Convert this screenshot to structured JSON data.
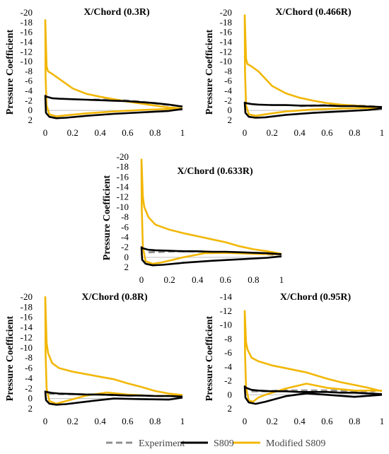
{
  "chart_data": [
    {
      "type": "line",
      "title": "X/Chord (0.3R)",
      "xlabel": "",
      "ylabel": "Pressure Coefficient",
      "xlim": [
        0,
        1
      ],
      "ylim": [
        -20,
        2
      ],
      "y_axis_reversed": true,
      "x_ticks": [
        "0",
        "0.2",
        "0.4",
        "0.6",
        "0.8",
        "1"
      ],
      "y_ticks": [
        "-20",
        "-18",
        "-16",
        "-14",
        "-12",
        "-10",
        "-8",
        "-6",
        "-4",
        "-2",
        "0",
        "2"
      ],
      "series": [
        {
          "name": "Experiment",
          "color": "#909090",
          "dash": true,
          "x": [
            0.35,
            0.45,
            0.55,
            0.65,
            0.75,
            0.85,
            0.95
          ],
          "y": [
            -2.2,
            -2.2,
            -2.1,
            -1.9,
            -1.6,
            -1.3,
            -1.0
          ]
        },
        {
          "name": "S809",
          "color": "#000000",
          "x": [
            1.0,
            0.9,
            0.8,
            0.7,
            0.6,
            0.5,
            0.4,
            0.3,
            0.2,
            0.1,
            0.05,
            0.01,
            0.0,
            0.005,
            0.03,
            0.08,
            0.15,
            0.3,
            0.5,
            0.7,
            0.9,
            1.0
          ],
          "y": [
            -0.8,
            -1.2,
            -1.5,
            -1.7,
            -1.9,
            -2.0,
            -2.1,
            -2.2,
            -2.3,
            -2.4,
            -2.5,
            -2.8,
            -3.0,
            0.5,
            1.3,
            1.6,
            1.5,
            1.1,
            0.7,
            0.4,
            0.1,
            -0.3
          ]
        },
        {
          "name": "Modified S809",
          "color": "#f2b705",
          "x": [
            1.0,
            0.9,
            0.8,
            0.7,
            0.6,
            0.5,
            0.4,
            0.3,
            0.2,
            0.1,
            0.05,
            0.02,
            0.01,
            0.0,
            0.002,
            0.01,
            0.03,
            0.08,
            0.15,
            0.3,
            0.5,
            0.7,
            0.9,
            1.0
          ],
          "y": [
            -0.4,
            -0.6,
            -1.0,
            -1.4,
            -1.8,
            -2.3,
            -2.8,
            -3.4,
            -4.5,
            -6.5,
            -7.5,
            -8.0,
            -9.0,
            -18.5,
            -7.0,
            -1.0,
            0.8,
            1.2,
            1.0,
            0.6,
            0.2,
            -0.1,
            -0.3,
            -0.4
          ]
        }
      ]
    },
    {
      "type": "line",
      "title": "X/Chord (0.466R)",
      "xlabel": "",
      "ylabel": "Pressure Coefficient",
      "xlim": [
        0,
        1
      ],
      "ylim": [
        -20,
        2
      ],
      "y_axis_reversed": true,
      "x_ticks": [
        "0",
        "0.2",
        "0.4",
        "0.6",
        "0.8",
        "1"
      ],
      "y_ticks": [
        "-20",
        "-18",
        "-16",
        "-14",
        "-12",
        "-10",
        "-8",
        "-6",
        "-4",
        "-2",
        "0",
        "2"
      ],
      "series": [
        {
          "name": "Experiment",
          "color": "#909090",
          "dash": true,
          "x": [
            0.4,
            0.5,
            0.6,
            0.7,
            0.8,
            0.9,
            0.95
          ],
          "y": [
            -0.9,
            -1.0,
            -1.1,
            -1.1,
            -1.0,
            -0.9,
            -0.8
          ]
        },
        {
          "name": "S809",
          "color": "#000000",
          "x": [
            1.0,
            0.9,
            0.8,
            0.7,
            0.6,
            0.5,
            0.4,
            0.3,
            0.2,
            0.1,
            0.05,
            0.01,
            0.0,
            0.005,
            0.03,
            0.08,
            0.15,
            0.3,
            0.5,
            0.7,
            0.9,
            1.0
          ],
          "y": [
            -0.7,
            -0.8,
            -0.9,
            -0.9,
            -1.0,
            -1.0,
            -1.0,
            -1.1,
            -1.1,
            -1.2,
            -1.3,
            -1.5,
            -1.6,
            0.5,
            1.3,
            1.5,
            1.4,
            0.9,
            0.5,
            0.2,
            -0.1,
            -0.4
          ]
        },
        {
          "name": "Modified S809",
          "color": "#f2b705",
          "x": [
            1.0,
            0.9,
            0.8,
            0.7,
            0.6,
            0.5,
            0.4,
            0.3,
            0.2,
            0.1,
            0.05,
            0.02,
            0.01,
            0.0,
            0.002,
            0.01,
            0.03,
            0.08,
            0.15,
            0.3,
            0.5,
            0.7,
            0.9,
            1.0
          ],
          "y": [
            -0.5,
            -0.8,
            -1.0,
            -1.2,
            -1.5,
            -2.0,
            -2.6,
            -3.5,
            -5.0,
            -8.0,
            -9.0,
            -9.5,
            -10.5,
            -19.5,
            -8.0,
            -1.0,
            0.8,
            1.1,
            0.8,
            0.2,
            -0.2,
            -0.4,
            -0.5,
            -0.5
          ]
        }
      ]
    },
    {
      "type": "line",
      "title": "X/Chord (0.633R)",
      "xlabel": "",
      "ylabel": "Pressure Coefficient",
      "xlim": [
        0,
        1
      ],
      "ylim": [
        -20,
        2
      ],
      "y_axis_reversed": true,
      "x_ticks": [
        "0",
        "0.2",
        "0.4",
        "0.6",
        "0.8",
        "1"
      ],
      "y_ticks": [
        "-20",
        "-18",
        "-16",
        "-14",
        "-12",
        "-10",
        "-8",
        "-6",
        "-4",
        "-2",
        "0",
        "2"
      ],
      "series": [
        {
          "name": "Experiment",
          "color": "#909090",
          "dash": true,
          "x": [
            0.05,
            0.15,
            0.25,
            0.35,
            0.45,
            0.55,
            0.65,
            0.75,
            0.85,
            0.95
          ],
          "y": [
            -1.0,
            -1.1,
            -1.2,
            -1.2,
            -1.1,
            -1.0,
            -0.9,
            -0.8,
            -0.7,
            -0.5
          ]
        },
        {
          "name": "S809",
          "color": "#000000",
          "x": [
            1.0,
            0.9,
            0.8,
            0.7,
            0.6,
            0.5,
            0.4,
            0.3,
            0.2,
            0.1,
            0.05,
            0.01,
            0.0,
            0.005,
            0.03,
            0.08,
            0.15,
            0.3,
            0.5,
            0.7,
            0.9,
            1.0
          ],
          "y": [
            -0.6,
            -0.8,
            -0.9,
            -1.0,
            -1.1,
            -1.1,
            -1.2,
            -1.2,
            -1.3,
            -1.4,
            -1.5,
            -1.8,
            -2.0,
            0.5,
            1.3,
            1.6,
            1.5,
            1.1,
            0.7,
            0.4,
            0.1,
            -0.2
          ]
        },
        {
          "name": "Modified S809",
          "color": "#f2b705",
          "x": [
            1.0,
            0.9,
            0.8,
            0.7,
            0.6,
            0.5,
            0.4,
            0.3,
            0.2,
            0.1,
            0.05,
            0.02,
            0.01,
            0.0,
            0.002,
            0.01,
            0.03,
            0.08,
            0.15,
            0.3,
            0.45,
            0.6,
            0.8,
            1.0
          ],
          "y": [
            -0.7,
            -1.2,
            -1.6,
            -2.2,
            -3.0,
            -3.6,
            -4.2,
            -4.8,
            -5.5,
            -6.5,
            -8.0,
            -10.0,
            -12.0,
            -19.5,
            -10.0,
            -2.0,
            0.8,
            1.3,
            1.0,
            0.0,
            -0.8,
            -0.9,
            -0.7,
            -0.6
          ]
        }
      ]
    },
    {
      "type": "line",
      "title": "X/Chord (0.8R)",
      "xlabel": "",
      "ylabel": "Pressure Coefficient",
      "xlim": [
        0,
        1
      ],
      "ylim": [
        -20,
        2
      ],
      "y_axis_reversed": true,
      "x_ticks": [
        "0",
        "0.2",
        "0.4",
        "0.6",
        "0.8",
        "1"
      ],
      "y_ticks": [
        "-20",
        "-18",
        "-16",
        "-14",
        "-12",
        "-10",
        "-8",
        "-6",
        "-4",
        "-2",
        "0",
        "2"
      ],
      "series": [
        {
          "name": "Experiment",
          "color": "#909090",
          "dash": true,
          "x": [
            0.02,
            0.1,
            0.2,
            0.3,
            0.4,
            0.5,
            0.6,
            0.7,
            0.8,
            0.9
          ],
          "y": [
            -1.0,
            -0.9,
            -0.9,
            -0.8,
            -0.8,
            -0.7,
            -0.6,
            -0.6,
            -0.5,
            -0.5
          ]
        },
        {
          "name": "S809",
          "color": "#000000",
          "x": [
            1.0,
            0.9,
            0.8,
            0.7,
            0.6,
            0.5,
            0.4,
            0.3,
            0.2,
            0.1,
            0.05,
            0.01,
            0.0,
            0.005,
            0.03,
            0.08,
            0.15,
            0.3,
            0.5,
            0.7,
            0.9,
            1.0
          ],
          "y": [
            -0.4,
            -0.5,
            -0.5,
            -0.6,
            -0.6,
            -0.7,
            -0.8,
            -0.8,
            -0.9,
            -1.0,
            -1.1,
            -1.3,
            -1.4,
            0.3,
            1.0,
            1.2,
            1.1,
            0.6,
            0.0,
            0.1,
            0.2,
            -0.2
          ]
        },
        {
          "name": "Modified S809",
          "color": "#f2b705",
          "x": [
            1.0,
            0.9,
            0.8,
            0.7,
            0.6,
            0.5,
            0.4,
            0.3,
            0.2,
            0.1,
            0.05,
            0.02,
            0.01,
            0.0,
            0.002,
            0.01,
            0.03,
            0.08,
            0.15,
            0.3,
            0.45,
            0.6,
            0.8,
            1.0
          ],
          "y": [
            -0.7,
            -1.0,
            -1.5,
            -2.3,
            -3.0,
            -3.8,
            -4.3,
            -4.8,
            -5.3,
            -6.0,
            -7.0,
            -9.0,
            -11.0,
            -20.0,
            -9.0,
            -2.0,
            0.5,
            1.0,
            0.5,
            -0.6,
            -1.2,
            -0.8,
            -0.5,
            -0.6
          ]
        }
      ]
    },
    {
      "type": "line",
      "title": "X/Chord (0.95R)",
      "xlabel": "",
      "ylabel": "Pressure Coefficient",
      "xlim": [
        0,
        1
      ],
      "ylim": [
        -14,
        2
      ],
      "y_axis_reversed": true,
      "x_ticks": [
        "0",
        "0.2",
        "0.4",
        "0.6",
        "0.8",
        "1"
      ],
      "y_ticks": [
        "-14",
        "-12",
        "-10",
        "-8",
        "-6",
        "-4",
        "-2",
        "0",
        "2"
      ],
      "series": [
        {
          "name": "Experiment",
          "color": "#909090",
          "dash": true,
          "x": [
            0.05,
            0.15,
            0.25,
            0.35,
            0.45,
            0.55,
            0.65,
            0.75,
            0.85,
            0.95
          ],
          "y": [
            -0.5,
            -0.5,
            -0.6,
            -0.6,
            -0.6,
            -0.6,
            -0.6,
            -0.5,
            -0.5,
            -0.5
          ]
        },
        {
          "name": "S809",
          "color": "#000000",
          "x": [
            1.0,
            0.9,
            0.8,
            0.7,
            0.6,
            0.5,
            0.4,
            0.3,
            0.2,
            0.1,
            0.05,
            0.01,
            0.0,
            0.005,
            0.03,
            0.08,
            0.15,
            0.3,
            0.45,
            0.6,
            0.8,
            1.0
          ],
          "y": [
            -0.1,
            -0.2,
            -0.3,
            -0.3,
            -0.4,
            -0.4,
            -0.4,
            -0.5,
            -0.5,
            -0.6,
            -0.7,
            -1.0,
            -1.2,
            0.4,
            1.1,
            1.3,
            1.0,
            0.2,
            -0.2,
            0.0,
            0.3,
            0.0
          ]
        },
        {
          "name": "Modified S809",
          "color": "#f2b705",
          "x": [
            1.0,
            0.9,
            0.8,
            0.7,
            0.6,
            0.5,
            0.45,
            0.4,
            0.3,
            0.2,
            0.1,
            0.05,
            0.02,
            0.01,
            0.0,
            0.002,
            0.01,
            0.03,
            0.06,
            0.1,
            0.15,
            0.3,
            0.45,
            0.6,
            0.8,
            1.0
          ],
          "y": [
            -0.5,
            -1.0,
            -1.4,
            -1.8,
            -2.3,
            -2.9,
            -3.2,
            -3.4,
            -3.8,
            -4.2,
            -4.8,
            -5.3,
            -6.5,
            -7.5,
            -12.0,
            -6.0,
            -1.0,
            0.8,
            1.0,
            0.4,
            0.0,
            -0.9,
            -1.6,
            -1.0,
            -0.6,
            -0.6
          ]
        }
      ]
    }
  ],
  "legend": {
    "items": [
      {
        "label": "Experiment",
        "color": "#909090",
        "dash": true
      },
      {
        "label": "S809",
        "color": "#000000",
        "dash": false
      },
      {
        "label": "Modified S809",
        "color": "#f2b705",
        "dash": false
      }
    ]
  }
}
